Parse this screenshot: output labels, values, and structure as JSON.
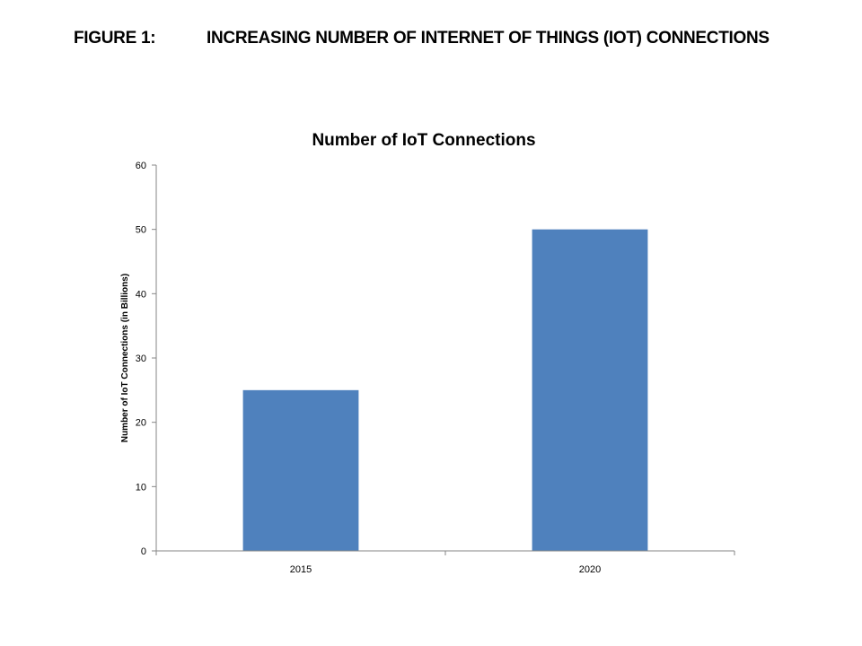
{
  "figure": {
    "number": "FIGURE 1:",
    "caption": "INCREASING NUMBER OF INTERNET OF THINGS (IOT)  CONNECTIONS"
  },
  "chart_data": {
    "type": "bar",
    "title": "Number of IoT Connections",
    "xlabel": "",
    "ylabel": "Number of IoT Connections  (in Billions)",
    "categories": [
      "2015",
      "2020"
    ],
    "values": [
      25,
      50
    ],
    "ylim": [
      0,
      60
    ],
    "yticks": [
      "0",
      "10",
      "20",
      "30",
      "40",
      "50",
      "60"
    ],
    "grid": false,
    "legend": "none",
    "bar_color": "#4F81BD"
  }
}
